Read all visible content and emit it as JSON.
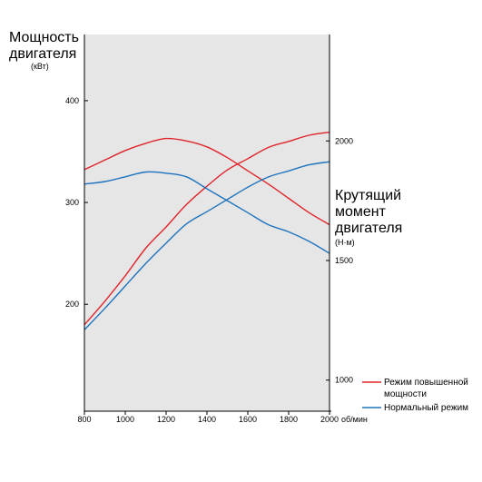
{
  "chart_data": {
    "type": "line",
    "x_axis": {
      "ticks": [
        800,
        1000,
        1200,
        1400,
        1600,
        1800,
        2000
      ],
      "unit": "об/мин",
      "range": [
        800,
        2000
      ]
    },
    "power_axis": {
      "title_lines": [
        "Мощность",
        "двигателя"
      ],
      "unit": "(кВт)",
      "ticks": [
        200,
        300,
        400
      ],
      "range": [
        95,
        465
      ]
    },
    "torque_axis": {
      "title_lines": [
        "Крутящий",
        "момент",
        "двигателя"
      ],
      "unit": "(Н·м)",
      "ticks": [
        1000,
        1500,
        2000
      ],
      "range": [
        870,
        2445
      ]
    },
    "series": [
      {
        "name": "Режим повышенной мощности",
        "legend_lines": [
          "Режим повышенной",
          "мощности"
        ],
        "color": "#e0242b",
        "power": {
          "x": [
            800,
            900,
            1000,
            1100,
            1200,
            1300,
            1400,
            1500,
            1600,
            1700,
            1800,
            1900,
            2000
          ],
          "y": [
            180,
            203,
            228,
            255,
            276,
            298,
            316,
            332,
            343,
            354,
            360,
            366,
            369
          ]
        },
        "torque": {
          "x": [
            800,
            900,
            1000,
            1100,
            1200,
            1300,
            1400,
            1500,
            1600,
            1700,
            1800,
            1900,
            2000
          ],
          "y": [
            1880,
            1920,
            1960,
            1990,
            2010,
            2000,
            1975,
            1930,
            1875,
            1820,
            1760,
            1700,
            1650
          ]
        }
      },
      {
        "name": "Нормальный режим",
        "legend_lines": [
          "Нормальный режим"
        ],
        "color": "#1e73be",
        "power": {
          "x": [
            800,
            900,
            1000,
            1100,
            1200,
            1300,
            1400,
            1500,
            1600,
            1700,
            1800,
            1900,
            2000
          ],
          "y": [
            175,
            196,
            218,
            240,
            260,
            279,
            291,
            303,
            315,
            325,
            331,
            337,
            340
          ]
        },
        "torque": {
          "x": [
            800,
            900,
            1000,
            1100,
            1200,
            1300,
            1400,
            1500,
            1600,
            1700,
            1800,
            1900,
            2000
          ],
          "y": [
            1820,
            1830,
            1850,
            1870,
            1865,
            1850,
            1800,
            1750,
            1700,
            1650,
            1620,
            1580,
            1530
          ]
        }
      }
    ],
    "plot_background": "#e6e6e6"
  }
}
